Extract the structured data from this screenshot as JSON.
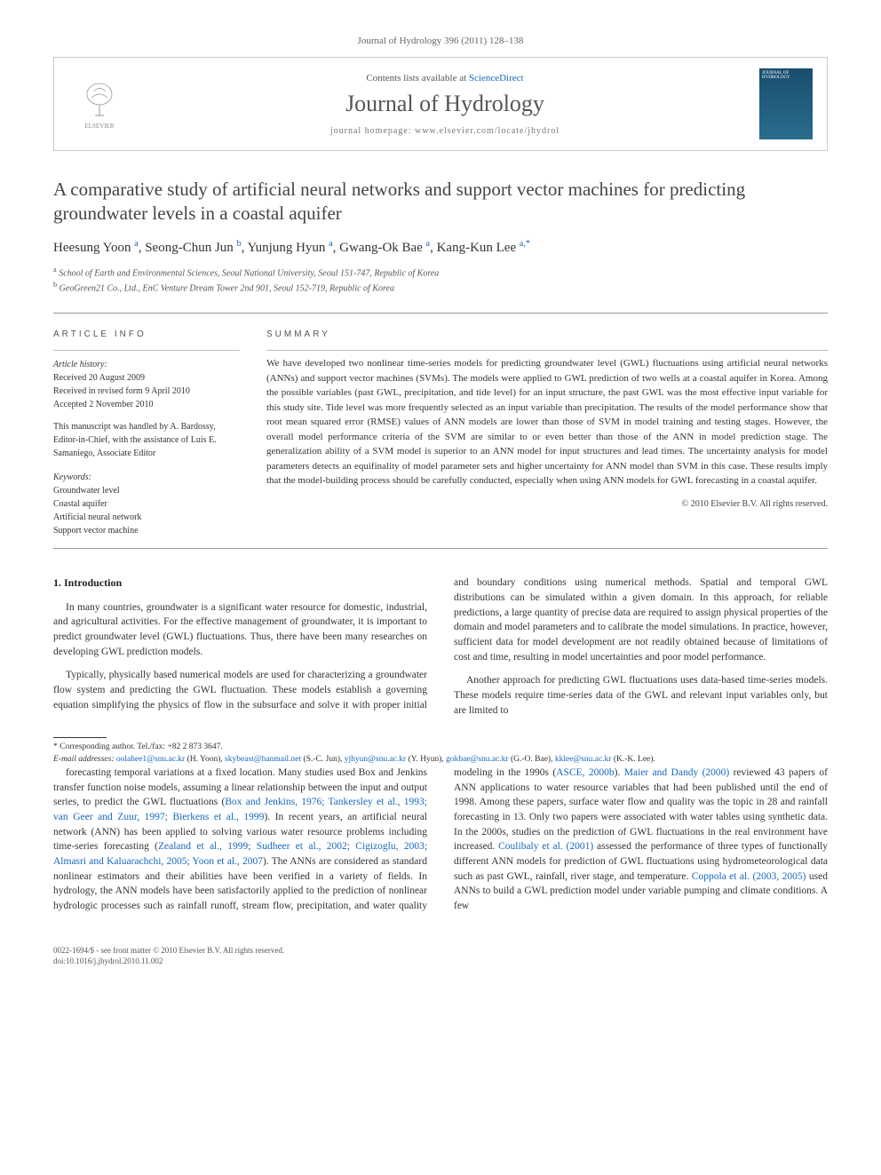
{
  "citation": "Journal of Hydrology 396 (2011) 128–138",
  "header": {
    "contents_prefix": "Contents lists available at ",
    "contents_link": "ScienceDirect",
    "journal_name": "Journal of Hydrology",
    "homepage_prefix": "journal homepage: ",
    "homepage_url": "www.elsevier.com/locate/jhydrol",
    "publisher_name": "ELSEVIER",
    "cover_label": "JOURNAL OF HYDROLOGY"
  },
  "article": {
    "title": "A comparative study of artificial neural networks and support vector machines for predicting groundwater levels in a coastal aquifer",
    "authors_html": "Heesung Yoon <sup>a</sup>, Seong-Chun Jun <sup>b</sup>, Yunjung Hyun <sup>a</sup>, Gwang-Ok Bae <sup>a</sup>, Kang-Kun Lee <sup>a,*</sup>",
    "affiliations": {
      "a": "a School of Earth and Environmental Sciences, Seoul National University, Seoul 151-747, Republic of Korea",
      "b": "b GeoGreen21 Co., Ltd., EnC Venture Dream Tower 2nd 901, Seoul 152-719, Republic of Korea"
    }
  },
  "info": {
    "heading": "ARTICLE INFO",
    "history_label": "Article history:",
    "history": [
      "Received 20 August 2009",
      "Received in revised form 9 April 2010",
      "Accepted 2 November 2010"
    ],
    "handled": "This manuscript was handled by A. Bardossy, Editor-in-Chief, with the assistance of Luis E. Samaniego, Associate Editor",
    "keywords_label": "Keywords:",
    "keywords": [
      "Groundwater level",
      "Coastal aquifer",
      "Artificial neural network",
      "Support vector machine"
    ]
  },
  "summary": {
    "heading": "SUMMARY",
    "text": "We have developed two nonlinear time-series models for predicting groundwater level (GWL) fluctuations using artificial neural networks (ANNs) and support vector machines (SVMs). The models were applied to GWL prediction of two wells at a coastal aquifer in Korea. Among the possible variables (past GWL, precipitation, and tide level) for an input structure, the past GWL was the most effective input variable for this study site. Tide level was more frequently selected as an input variable than precipitation. The results of the model performance show that root mean squared error (RMSE) values of ANN models are lower than those of SVM in model training and testing stages. However, the overall model performance criteria of the SVM are similar to or even better than those of the ANN in model prediction stage. The generalization ability of a SVM model is superior to an ANN model for input structures and lead times. The uncertainty analysis for model parameters detects an equifinality of model parameter sets and higher uncertainty for ANN model than SVM in this case. These results imply that the model-building process should be carefully conducted, especially when using ANN models for GWL forecasting in a coastal aquifer.",
    "copyright": "© 2010 Elsevier B.V. All rights reserved."
  },
  "body": {
    "section_heading": "1. Introduction",
    "paragraphs": [
      "In many countries, groundwater is a significant water resource for domestic, industrial, and agricultural activities. For the effective management of groundwater, it is important to predict groundwater level (GWL) fluctuations. Thus, there have been many researches on developing GWL prediction models.",
      "Typically, physically based numerical models are used for characterizing a groundwater flow system and predicting the GWL fluctuation. These models establish a governing equation simplifying the physics of flow in the subsurface and solve it with proper initial and boundary conditions using numerical methods. Spatial and temporal GWL distributions can be simulated within a given domain. In this approach, for reliable predictions, a large quantity of precise data are required to assign physical properties of the domain and model parameters and to calibrate the model simulations. In practice, however, sufficient data for model development are not readily obtained because of limitations of cost and time, resulting in model uncertainties and poor model performance.",
      "Another approach for predicting GWL fluctuations uses data-based time-series models. These models require time-series data of the GWL and relevant input variables only, but are limited to"
    ],
    "col2_continuation": "forecasting temporal variations at a fixed location. Many studies used Box and Jenkins transfer function noise models, assuming a linear relationship between the input and output series, to predict the GWL fluctuations (<span class=\"ref-link\">Box and Jenkins, 1976; Tankersley et al., 1993; van Geer and Zuur, 1997; Bierkens et al., 1999</span>). In recent years, an artificial neural network (ANN) has been applied to solving various water resource problems including time-series forecasting (<span class=\"ref-link\">Zealand et al., 1999; Sudheer et al., 2002; Cigizoglu, 2003; Almasri and Kaluarachchi, 2005; Yoon et al., 2007</span>). The ANNs are considered as standard nonlinear estimators and their abilities have been verified in a variety of fields. In hydrology, the ANN models have been satisfactorily applied to the prediction of nonlinear hydrologic processes such as rainfall runoff, stream flow, precipitation, and water quality modeling in the 1990s (<span class=\"ref-link\">ASCE, 2000b</span>). <span class=\"ref-link\">Maier and Dandy (2000)</span> reviewed 43 papers of ANN applications to water resource variables that had been published until the end of 1998. Among these papers, surface water flow and quality was the topic in 28 and rainfall forecasting in 13. Only two papers were associated with water tables using synthetic data. In the 2000s, studies on the prediction of GWL fluctuations in the real environment have increased. <span class=\"ref-link\">Coulibaly et al. (2001)</span> assessed the performance of three types of functionally different ANN models for prediction of GWL fluctuations using hydrometeorological data such as past GWL, rainfall, river stage, and temperature. <span class=\"ref-link\">Coppola et al. (2003, 2005)</span> used ANNs to build a GWL prediction model under variable pumping and climate conditions. A few"
  },
  "footer": {
    "corresponding": "* Corresponding author. Tel./fax: +82 2 873 3647.",
    "emails_label": "E-mail addresses: ",
    "emails_html": "<a>oolahee1@snu.ac.kr</a> (H. Yoon), <a>skybeast@hanmail.net</a> (S.-C. Jun), <a>yjhyun@snu.ac.kr</a> (Y. Hyun), <a>gokbae@snu.ac.kr</a> (G.-O. Bae), <a>kklee@snu.ac.kr</a> (K.-K. Lee).",
    "issn_line": "0022-1694/$ - see front matter © 2010 Elsevier B.V. All rights reserved.",
    "doi_line": "doi:10.1016/j.jhydrol.2010.11.002"
  },
  "colors": {
    "link": "#1668bd",
    "text": "#333333",
    "muted": "#666666",
    "border": "#cccccc"
  }
}
